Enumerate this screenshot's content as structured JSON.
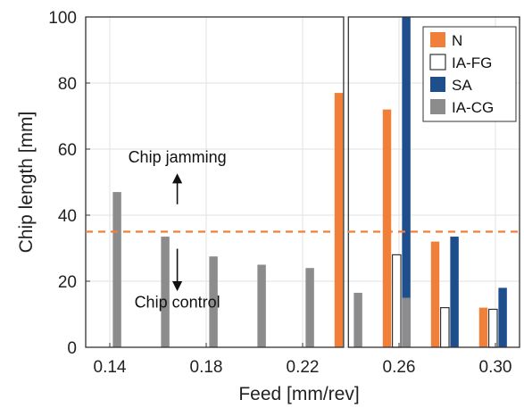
{
  "chart_data": {
    "type": "bar",
    "xlabel": "Feed [mm/rev]",
    "ylabel": "Chip length [mm]",
    "xlim": [
      0.13,
      0.31
    ],
    "ylim": [
      0,
      100
    ],
    "xticks": [
      0.14,
      0.18,
      0.22,
      0.26,
      0.3
    ],
    "xtick_labels": [
      "0.14",
      "0.18",
      "0.22",
      "0.26",
      "0.30"
    ],
    "yticks": [
      0,
      20,
      40,
      60,
      80,
      100
    ],
    "ytick_labels": [
      "0",
      "20",
      "40",
      "60",
      "80",
      "100"
    ],
    "grid": true,
    "legend_position": "top-right",
    "series": [
      {
        "name": "N",
        "color": "#f07f3a",
        "fill": true,
        "points": [
          {
            "x": 0.235,
            "y": 77
          },
          {
            "x": 0.255,
            "y": 72
          },
          {
            "x": 0.275,
            "y": 32
          },
          {
            "x": 0.295,
            "y": 12
          }
        ]
      },
      {
        "name": "IA-FG",
        "color": "#333333",
        "fill": false,
        "points": [
          {
            "x": 0.259,
            "y": 28
          },
          {
            "x": 0.279,
            "y": 12
          },
          {
            "x": 0.299,
            "y": 11.5
          }
        ]
      },
      {
        "name": "SA",
        "color": "#1e4f8c",
        "fill": true,
        "points": [
          {
            "x": 0.263,
            "y": 100
          },
          {
            "x": 0.283,
            "y": 33.5
          },
          {
            "x": 0.303,
            "y": 18
          }
        ]
      },
      {
        "name": "IA-CG",
        "color": "#8c8c8c",
        "fill": true,
        "points": [
          {
            "x": 0.143,
            "y": 47
          },
          {
            "x": 0.163,
            "y": 33.5
          },
          {
            "x": 0.183,
            "y": 27.5
          },
          {
            "x": 0.203,
            "y": 25
          },
          {
            "x": 0.223,
            "y": 24
          },
          {
            "x": 0.243,
            "y": 16.5
          },
          {
            "x": 0.263,
            "y": 15
          }
        ]
      }
    ],
    "threshold": {
      "y": 35,
      "color": "#f07f3a",
      "style": "dashed"
    },
    "boxes": [
      {
        "x": [
          0.13,
          0.237
        ]
      },
      {
        "x": [
          0.239,
          0.31
        ]
      }
    ],
    "annotations": [
      {
        "text": "Chip jamming",
        "x": 0.168,
        "y": 56,
        "arrow": "up"
      },
      {
        "text": "Chip control",
        "x": 0.168,
        "y": 12,
        "arrow": "down"
      }
    ]
  }
}
